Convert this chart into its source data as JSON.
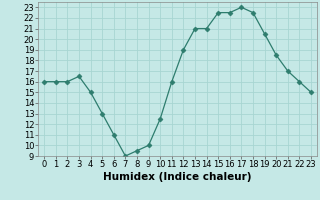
{
  "x": [
    0,
    1,
    2,
    3,
    4,
    5,
    6,
    7,
    8,
    9,
    10,
    11,
    12,
    13,
    14,
    15,
    16,
    17,
    18,
    19,
    20,
    21,
    22,
    23
  ],
  "y": [
    16,
    16,
    16,
    16.5,
    15,
    13,
    11,
    9,
    9.5,
    10,
    12.5,
    16,
    19,
    21,
    21,
    22.5,
    22.5,
    23,
    22.5,
    20.5,
    18.5,
    17,
    16,
    15
  ],
  "line_color": "#2e7d6e",
  "marker": "D",
  "marker_size": 2.5,
  "bg_color": "#c5e8e6",
  "grid_color": "#a8d5d2",
  "xlabel": "Humidex (Indice chaleur)",
  "xlabel_fontsize": 7.5,
  "ylim": [
    9,
    23.5
  ],
  "xlim": [
    -0.5,
    23.5
  ],
  "yticks": [
    9,
    10,
    11,
    12,
    13,
    14,
    15,
    16,
    17,
    18,
    19,
    20,
    21,
    22,
    23
  ],
  "xticks": [
    0,
    1,
    2,
    3,
    4,
    5,
    6,
    7,
    8,
    9,
    10,
    11,
    12,
    13,
    14,
    15,
    16,
    17,
    18,
    19,
    20,
    21,
    22,
    23
  ],
  "tick_fontsize": 6
}
